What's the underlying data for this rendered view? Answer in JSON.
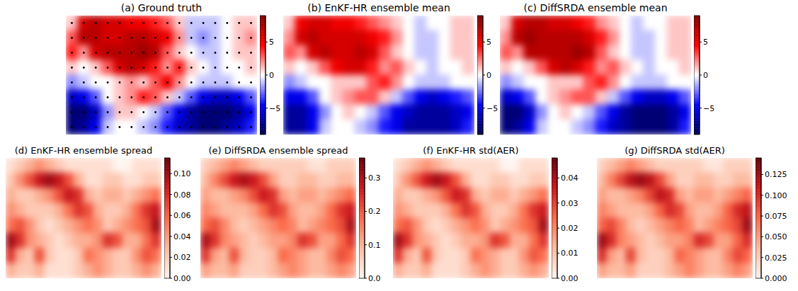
{
  "chart_data": [
    {
      "type": "heatmap",
      "title": "(a) Ground truth",
      "color": "seismic",
      "tick_labels": false,
      "cells": [
        [
          1,
          6,
          7,
          6,
          6,
          5,
          5,
          4,
          3,
          1,
          -1,
          -1,
          -1,
          0,
          1,
          1
        ],
        [
          3,
          7,
          7,
          6,
          6,
          7,
          7,
          6,
          5,
          2,
          -1,
          -2,
          -1,
          0,
          1,
          2
        ],
        [
          4,
          2,
          6,
          7,
          7,
          7,
          8,
          7,
          3,
          1,
          0,
          -1,
          -1,
          0,
          1,
          1
        ],
        [
          1,
          0,
          1,
          3,
          6,
          7,
          6,
          4,
          2,
          4,
          1,
          0,
          -1,
          0,
          0,
          1
        ],
        [
          -2,
          -1,
          0,
          0,
          1,
          2,
          1,
          3,
          5,
          2,
          0,
          -1,
          -1,
          -1,
          0,
          0
        ],
        [
          -6,
          -5,
          -3,
          0,
          1,
          2,
          4,
          3,
          1,
          -1,
          -3,
          -5,
          -6,
          -6,
          -5,
          -3
        ],
        [
          -8,
          -8,
          -6,
          -2,
          1,
          1,
          0,
          -1,
          -3,
          -5,
          -7,
          -8,
          -8,
          -8,
          -7,
          -5
        ],
        [
          -8,
          -7,
          -5,
          -1,
          0,
          0,
          -1,
          -2,
          -4,
          -6,
          -7,
          -8,
          -8,
          -7,
          -6,
          -4
        ]
      ],
      "observations": {
        "x": [
          0.5,
          1.5,
          2.5,
          3.5,
          4.5,
          5.5,
          6.5,
          7.5,
          8.5,
          9.5,
          10.5,
          11.5,
          12.5,
          13.5,
          14.5,
          15.5
        ],
        "y": [
          0.5,
          1.5,
          2.5,
          3.5,
          4.5,
          5.5,
          6.5,
          7.5
        ]
      },
      "colorbar": {
        "range": [
          -9,
          9
        ],
        "ticks": [
          {
            "value": -5,
            "label": "−5"
          },
          0,
          5
        ]
      }
    },
    {
      "type": "heatmap",
      "title": "(b) EnKF-HR ensemble mean",
      "color": "seismic",
      "tick_labels": false,
      "cells": [
        [
          1,
          5,
          6,
          6,
          5,
          5,
          4,
          3,
          2,
          1,
          0,
          -1,
          0,
          0,
          1,
          1
        ],
        [
          2,
          6,
          7,
          6,
          6,
          6,
          6,
          5,
          4,
          2,
          0,
          -1,
          -1,
          0,
          1,
          1
        ],
        [
          3,
          2,
          6,
          7,
          6,
          6,
          7,
          6,
          3,
          1,
          0,
          -1,
          -1,
          0,
          1,
          1
        ],
        [
          1,
          0,
          1,
          3,
          5,
          6,
          6,
          4,
          2,
          3,
          1,
          0,
          -1,
          0,
          0,
          1
        ],
        [
          -2,
          -1,
          0,
          0,
          1,
          1,
          1,
          3,
          4,
          2,
          0,
          -1,
          -1,
          -1,
          0,
          0
        ],
        [
          -5,
          -5,
          -3,
          0,
          1,
          2,
          3,
          3,
          1,
          -1,
          -3,
          -5,
          -6,
          -5,
          -4,
          -3
        ],
        [
          -7,
          -7,
          -5,
          -2,
          0,
          1,
          0,
          -1,
          -3,
          -5,
          -6,
          -7,
          -7,
          -7,
          -6,
          -5
        ],
        [
          -7,
          -7,
          -5,
          -1,
          0,
          0,
          -1,
          -2,
          -4,
          -5,
          -7,
          -7,
          -7,
          -7,
          -6,
          -4
        ]
      ],
      "colorbar": {
        "range": [
          -9,
          9
        ],
        "ticks": [
          {
            "value": -5,
            "label": "−5"
          },
          0,
          5
        ]
      }
    },
    {
      "type": "heatmap",
      "title": "(c) DiffSRDA ensemble mean",
      "color": "seismic",
      "tick_labels": false,
      "cells": [
        [
          1,
          6,
          7,
          7,
          6,
          6,
          5,
          4,
          2,
          1,
          0,
          -1,
          0,
          0,
          1,
          1
        ],
        [
          2,
          7,
          8,
          7,
          7,
          7,
          7,
          6,
          4,
          2,
          0,
          -1,
          -1,
          0,
          1,
          1
        ],
        [
          3,
          2,
          7,
          7,
          7,
          7,
          8,
          7,
          3,
          1,
          0,
          -1,
          -1,
          0,
          1,
          1
        ],
        [
          1,
          0,
          1,
          3,
          6,
          7,
          6,
          4,
          2,
          3,
          1,
          0,
          -1,
          0,
          0,
          1
        ],
        [
          -2,
          -1,
          0,
          0,
          1,
          1,
          1,
          3,
          4,
          2,
          0,
          -1,
          -1,
          -1,
          0,
          0
        ],
        [
          -6,
          -5,
          -3,
          0,
          1,
          2,
          3,
          3,
          1,
          -1,
          -3,
          -5,
          -6,
          -6,
          -5,
          -3
        ],
        [
          -8,
          -8,
          -6,
          -2,
          0,
          1,
          0,
          -1,
          -3,
          -5,
          -7,
          -8,
          -8,
          -8,
          -7,
          -5
        ],
        [
          -8,
          -7,
          -5,
          -1,
          0,
          0,
          -1,
          -2,
          -4,
          -6,
          -7,
          -8,
          -8,
          -8,
          -7,
          -4
        ]
      ],
      "colorbar": {
        "range": [
          -9,
          9
        ],
        "ticks": [
          {
            "value": -5,
            "label": "−5"
          },
          0,
          5
        ]
      }
    },
    {
      "type": "heatmap",
      "title": "(d) EnKF-HR ensemble spread",
      "color": "Reds",
      "tick_labels": false,
      "cells": [
        [
          0.011,
          0.022,
          0.033,
          0.044,
          0.033,
          0.022,
          0.011,
          0.011,
          0.011,
          0.011,
          0.011,
          0,
          0,
          0.011,
          0.011,
          0.011
        ],
        [
          0.022,
          0.044,
          0.066,
          0.088,
          0.099,
          0.088,
          0.066,
          0.033,
          0.011,
          0.011,
          0.022,
          0.022,
          0.011,
          0.011,
          0.022,
          0.022
        ],
        [
          0.033,
          0.022,
          0.022,
          0.033,
          0.044,
          0.066,
          0.088,
          0.077,
          0.033,
          0.022,
          0.033,
          0.033,
          0.022,
          0.033,
          0.044,
          0.055
        ],
        [
          0.044,
          0.033,
          0.022,
          0.022,
          0.022,
          0.033,
          0.055,
          0.077,
          0.066,
          0.033,
          0.022,
          0.022,
          0.033,
          0.055,
          0.077,
          0.088
        ],
        [
          0.055,
          0.066,
          0.044,
          0.022,
          0.011,
          0.022,
          0.033,
          0.044,
          0.055,
          0.044,
          0.022,
          0.033,
          0.044,
          0.055,
          0.066,
          0.099
        ],
        [
          0.099,
          0.077,
          0.044,
          0.033,
          0.022,
          0.011,
          0.022,
          0.033,
          0.033,
          0.044,
          0.077,
          0.066,
          0.033,
          0.033,
          0.055,
          0.077
        ],
        [
          0.077,
          0.033,
          0.022,
          0.066,
          0.022,
          0.011,
          0.011,
          0.022,
          0.055,
          0.044,
          0.033,
          0.022,
          0.022,
          0.044,
          0.066,
          0.055
        ],
        [
          0.033,
          0.022,
          0.022,
          0.033,
          0.011,
          0.011,
          0.011,
          0.022,
          0.033,
          0.044,
          0.033,
          0.022,
          0.022,
          0.033,
          0.044,
          0.033
        ]
      ],
      "colorbar": {
        "range": [
          0,
          0.115
        ],
        "ticks": [
          {
            "value": 0,
            "label": "0.00"
          },
          0.02,
          0.04,
          0.06,
          0.08,
          {
            "value": 0.1,
            "label": "0.10"
          }
        ]
      }
    },
    {
      "type": "heatmap",
      "title": "(e) DiffSRDA ensemble spread",
      "color": "Reds",
      "tick_labels": false,
      "cells": [
        [
          0.06,
          0.09,
          0.12,
          0.15,
          0.12,
          0.09,
          0.06,
          0.06,
          0.06,
          0.06,
          0.06,
          0.03,
          0.03,
          0.06,
          0.06,
          0.06
        ],
        [
          0.09,
          0.15,
          0.21,
          0.27,
          0.3,
          0.27,
          0.21,
          0.12,
          0.06,
          0.06,
          0.09,
          0.09,
          0.06,
          0.06,
          0.09,
          0.09
        ],
        [
          0.12,
          0.09,
          0.09,
          0.12,
          0.15,
          0.21,
          0.27,
          0.24,
          0.12,
          0.09,
          0.12,
          0.12,
          0.09,
          0.12,
          0.15,
          0.18
        ],
        [
          0.15,
          0.12,
          0.09,
          0.09,
          0.09,
          0.12,
          0.18,
          0.24,
          0.21,
          0.12,
          0.09,
          0.09,
          0.12,
          0.18,
          0.24,
          0.27
        ],
        [
          0.18,
          0.21,
          0.15,
          0.09,
          0.06,
          0.09,
          0.12,
          0.15,
          0.18,
          0.15,
          0.09,
          0.12,
          0.15,
          0.18,
          0.21,
          0.3
        ],
        [
          0.3,
          0.24,
          0.15,
          0.12,
          0.09,
          0.06,
          0.09,
          0.12,
          0.12,
          0.15,
          0.24,
          0.21,
          0.12,
          0.12,
          0.18,
          0.24
        ],
        [
          0.24,
          0.12,
          0.09,
          0.21,
          0.09,
          0.06,
          0.06,
          0.09,
          0.18,
          0.15,
          0.12,
          0.09,
          0.09,
          0.15,
          0.21,
          0.18
        ],
        [
          0.12,
          0.09,
          0.09,
          0.12,
          0.06,
          0.06,
          0.06,
          0.09,
          0.12,
          0.15,
          0.12,
          0.09,
          0.09,
          0.12,
          0.15,
          0.12
        ]
      ],
      "colorbar": {
        "range": [
          0,
          0.36
        ],
        "ticks": [
          {
            "value": 0,
            "label": "0.0"
          },
          0.1,
          0.2,
          0.3
        ]
      }
    },
    {
      "type": "heatmap",
      "title": "(f) EnKF-HR std(AER)",
      "color": "Reds",
      "tick_labels": false,
      "cells": [
        [
          0.005,
          0.009,
          0.014,
          0.018,
          0.014,
          0.009,
          0.005,
          0.005,
          0.005,
          0.005,
          0.005,
          0,
          0,
          0.005,
          0.005,
          0.005
        ],
        [
          0.009,
          0.018,
          0.027,
          0.036,
          0.041,
          0.036,
          0.027,
          0.014,
          0.005,
          0.005,
          0.009,
          0.009,
          0.005,
          0.005,
          0.009,
          0.009
        ],
        [
          0.014,
          0.009,
          0.009,
          0.014,
          0.018,
          0.027,
          0.036,
          0.032,
          0.014,
          0.009,
          0.014,
          0.014,
          0.009,
          0.014,
          0.018,
          0.023
        ],
        [
          0.018,
          0.014,
          0.009,
          0.009,
          0.009,
          0.014,
          0.023,
          0.032,
          0.027,
          0.014,
          0.009,
          0.009,
          0.014,
          0.023,
          0.032,
          0.036
        ],
        [
          0.023,
          0.027,
          0.018,
          0.009,
          0.005,
          0.009,
          0.014,
          0.018,
          0.023,
          0.018,
          0.009,
          0.014,
          0.018,
          0.023,
          0.027,
          0.041
        ],
        [
          0.041,
          0.032,
          0.018,
          0.014,
          0.009,
          0.005,
          0.009,
          0.014,
          0.014,
          0.018,
          0.032,
          0.027,
          0.014,
          0.014,
          0.023,
          0.032
        ],
        [
          0.032,
          0.014,
          0.009,
          0.027,
          0.009,
          0.005,
          0.005,
          0.009,
          0.023,
          0.018,
          0.014,
          0.009,
          0.009,
          0.018,
          0.027,
          0.023
        ],
        [
          0.014,
          0.009,
          0.009,
          0.014,
          0.005,
          0.005,
          0.005,
          0.009,
          0.014,
          0.018,
          0.014,
          0.009,
          0.009,
          0.014,
          0.018,
          0.014
        ]
      ],
      "colorbar": {
        "range": [
          0,
          0.048
        ],
        "ticks": [
          {
            "value": 0,
            "label": "0.00"
          },
          0.01,
          0.02,
          0.03,
          0.04
        ]
      }
    },
    {
      "type": "heatmap",
      "title": "(g) DiffSRDA std(AER)",
      "color": "Reds",
      "tick_labels": false,
      "cells": [
        [
          0.023,
          0.036,
          0.049,
          0.062,
          0.049,
          0.036,
          0.023,
          0.023,
          0.023,
          0.023,
          0.023,
          0.01,
          0.01,
          0.023,
          0.023,
          0.023
        ],
        [
          0.036,
          0.062,
          0.088,
          0.114,
          0.127,
          0.114,
          0.088,
          0.049,
          0.023,
          0.023,
          0.036,
          0.036,
          0.023,
          0.023,
          0.036,
          0.036
        ],
        [
          0.049,
          0.036,
          0.036,
          0.049,
          0.062,
          0.088,
          0.114,
          0.101,
          0.049,
          0.036,
          0.049,
          0.049,
          0.036,
          0.049,
          0.062,
          0.075
        ],
        [
          0.062,
          0.049,
          0.036,
          0.036,
          0.036,
          0.049,
          0.075,
          0.101,
          0.088,
          0.049,
          0.036,
          0.036,
          0.049,
          0.075,
          0.101,
          0.114
        ],
        [
          0.075,
          0.088,
          0.062,
          0.036,
          0.023,
          0.036,
          0.049,
          0.062,
          0.075,
          0.062,
          0.036,
          0.049,
          0.062,
          0.075,
          0.088,
          0.127
        ],
        [
          0.127,
          0.101,
          0.062,
          0.049,
          0.036,
          0.023,
          0.036,
          0.049,
          0.049,
          0.062,
          0.101,
          0.088,
          0.049,
          0.049,
          0.075,
          0.101
        ],
        [
          0.101,
          0.049,
          0.036,
          0.088,
          0.036,
          0.023,
          0.023,
          0.036,
          0.075,
          0.062,
          0.049,
          0.036,
          0.036,
          0.062,
          0.088,
          0.075
        ],
        [
          0.049,
          0.036,
          0.036,
          0.049,
          0.023,
          0.023,
          0.023,
          0.036,
          0.049,
          0.062,
          0.049,
          0.036,
          0.036,
          0.049,
          0.062,
          0.049
        ]
      ],
      "colorbar": {
        "range": [
          0,
          0.145
        ],
        "ticks": [
          {
            "value": 0,
            "label": "0.000"
          },
          0.025,
          {
            "value": 0.05,
            "label": "0.050"
          },
          0.075,
          {
            "value": 0.1,
            "label": "0.100"
          },
          0.125
        ]
      }
    }
  ]
}
